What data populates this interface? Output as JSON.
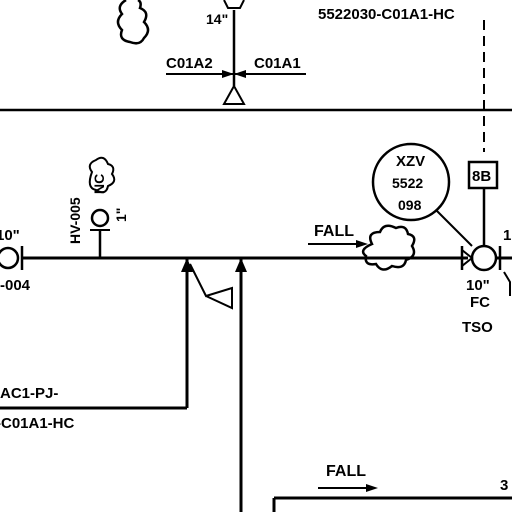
{
  "drawing": {
    "top_line_tag": "5522030-C01A1-HC",
    "top_left_size": "14\"",
    "top_spec_left": "C01A2",
    "top_spec_right": "C01A1",
    "left_size": "10\"",
    "left_line_tag": "-004",
    "hv_tag": "HV-005",
    "hv_size": "1\"",
    "hv_note": "NC",
    "fall_label": "FALL",
    "bubble_line1": "XZV",
    "bubble_line2": "5522",
    "bubble_line3": "098",
    "box_label": "8B",
    "valve_size": "10\"",
    "valve_mode": "FC",
    "valve_action": "TSO",
    "right_edge_number": "1",
    "lower_tag_1": "AC1-PJ-",
    "lower_tag_2": "-C01A1-HC",
    "fall_label_bottom": "FALL",
    "bottom_right_number": "3"
  }
}
